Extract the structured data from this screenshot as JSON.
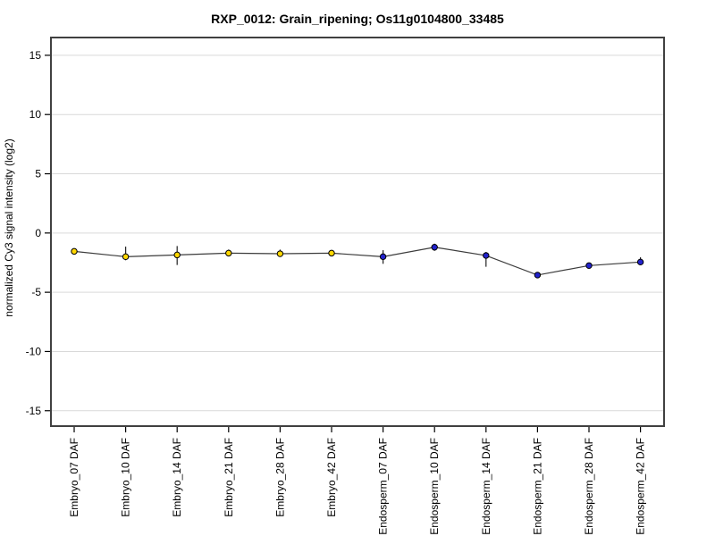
{
  "chart_data": {
    "type": "line",
    "title": "RXP_0012: Grain_ripening; Os11g0104800_33485",
    "ylabel": "normalized Cy3 signal intensity (log2)",
    "xlabel": "",
    "ylim": [
      -16.3,
      16.5
    ],
    "yticks": [
      15,
      10,
      5,
      0,
      -5,
      -10,
      -15
    ],
    "grid": true,
    "legend_position": "none",
    "categories": [
      "Embryo_07 DAF",
      "Embryo_10 DAF",
      "Embryo_14 DAF",
      "Embryo_21 DAF",
      "Embryo_28 DAF",
      "Embryo_42 DAF",
      "Endosperm_07 DAF",
      "Endosperm_10 DAF",
      "Endosperm_14 DAF",
      "Endosperm_21 DAF",
      "Endosperm_28 DAF",
      "Endosperm_42 DAF"
    ],
    "series": [
      {
        "name": "expression",
        "line_color": "#3c3c3c",
        "marker": "circle",
        "points": [
          {
            "category": "Embryo_07 DAF",
            "group": "Embryo",
            "value": -1.55,
            "err_up": 0.15,
            "err_down": 0.15
          },
          {
            "category": "Embryo_10 DAF",
            "group": "Embryo",
            "value": -2.0,
            "err_up": 0.85,
            "err_down": 0.3
          },
          {
            "category": "Embryo_14 DAF",
            "group": "Embryo",
            "value": -1.85,
            "err_up": 0.75,
            "err_down": 0.85
          },
          {
            "category": "Embryo_21 DAF",
            "group": "Embryo",
            "value": -1.7,
            "err_up": 0.3,
            "err_down": 0.25
          },
          {
            "category": "Embryo_28 DAF",
            "group": "Embryo",
            "value": -1.75,
            "err_up": 0.35,
            "err_down": 0.2
          },
          {
            "category": "Embryo_42 DAF",
            "group": "Embryo",
            "value": -1.7,
            "err_up": 0.2,
            "err_down": 0.2
          },
          {
            "category": "Endosperm_07 DAF",
            "group": "Endosperm",
            "value": -2.0,
            "err_up": 0.55,
            "err_down": 0.6
          },
          {
            "category": "Endosperm_10 DAF",
            "group": "Endosperm",
            "value": -1.2,
            "err_up": 0.3,
            "err_down": 0.3
          },
          {
            "category": "Endosperm_14 DAF",
            "group": "Endosperm",
            "value": -1.9,
            "err_up": 0.3,
            "err_down": 0.95
          },
          {
            "category": "Endosperm_21 DAF",
            "group": "Endosperm",
            "value": -3.55,
            "err_up": 0.1,
            "err_down": 0.1
          },
          {
            "category": "Endosperm_28 DAF",
            "group": "Endosperm",
            "value": -2.75,
            "err_up": 0.1,
            "err_down": 0.1
          },
          {
            "category": "Endosperm_42 DAF",
            "group": "Endosperm",
            "value": -2.45,
            "err_up": 0.4,
            "err_down": 0.15
          }
        ]
      }
    ],
    "group_colors": {
      "Embryo": "#FFD700",
      "Endosperm": "#2222CC"
    },
    "colors": {
      "background": "#ffffff",
      "grid": "#d9d9d9",
      "axis_box": "#404040",
      "tick": "#000000",
      "tick_label": "#000000",
      "error_bar": "#222222",
      "marker_stroke": "#000000"
    }
  }
}
